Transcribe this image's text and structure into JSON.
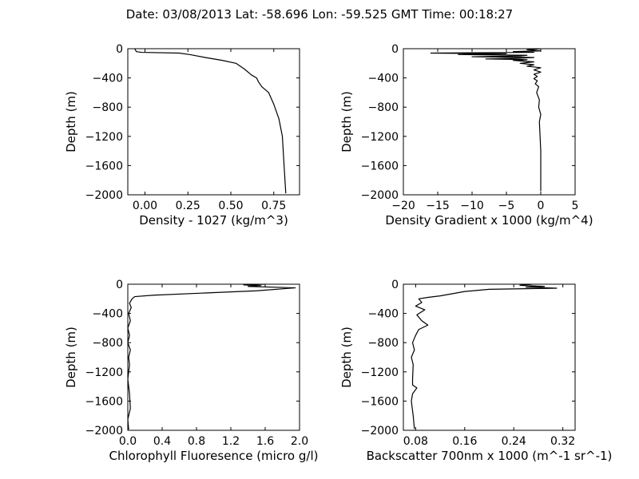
{
  "figure_title": "Date: 03/08/2013  Lat:  -58.696 Lon:  -59.525  GMT Time: 00:18:27",
  "chart_data": [
    {
      "type": "line",
      "title": "",
      "xlabel": "Density - 1027 (kg/m^3)",
      "ylabel": "Depth (m)",
      "xlim": [
        -0.1,
        0.9
      ],
      "ylim": [
        -2000,
        0
      ],
      "xticks": [
        0.0,
        0.25,
        0.5,
        0.75
      ],
      "xtick_labels": [
        "0.00",
        "0.25",
        "0.50",
        "0.75"
      ],
      "yticks": [
        0,
        -400,
        -800,
        -1200,
        -1600,
        -2000
      ],
      "ytick_labels": [
        "0",
        "−400",
        "−800",
        "−1200",
        "−1600",
        "−2000"
      ],
      "grid": false,
      "series": [
        {
          "x": [
            -0.06,
            -0.05,
            -0.02,
            0.2,
            0.26,
            0.35,
            0.45,
            0.53,
            0.58,
            0.62,
            0.65,
            0.66,
            0.68,
            0.72,
            0.75,
            0.78,
            0.8,
            0.81,
            0.82
          ],
          "y": [
            0,
            -40,
            -50,
            -60,
            -80,
            -120,
            -160,
            -200,
            -280,
            -360,
            -400,
            -450,
            -520,
            -600,
            -760,
            -960,
            -1200,
            -1600,
            -1980
          ]
        }
      ]
    },
    {
      "type": "line",
      "title": "",
      "xlabel": "Density Gradient x 1000 (kg/m^4)",
      "ylabel": "Depth (m)",
      "xlim": [
        -20,
        5
      ],
      "ylim": [
        -2000,
        0
      ],
      "xticks": [
        -20,
        -15,
        -10,
        -5,
        0,
        5
      ],
      "xtick_labels": [
        "−20",
        "−15",
        "−10",
        "−5",
        "0",
        "5"
      ],
      "yticks": [
        0,
        -400,
        -800,
        -1200,
        -1600,
        -2000
      ],
      "ytick_labels": [
        "0",
        "−400",
        "−800",
        "−1200",
        "−1600",
        "−2000"
      ],
      "grid": false,
      "series": [
        {
          "x": [
            0,
            -2,
            0,
            -4,
            -1,
            -16,
            -5,
            -12,
            -2,
            -3,
            -10,
            -1,
            -3,
            -8,
            -2,
            -4,
            -1,
            -3,
            -1,
            -2,
            0,
            -1,
            0,
            -1,
            -0.5,
            -1,
            -0.5,
            -0.8,
            -0.3,
            -0.6,
            -0.2,
            -0.3,
            0,
            -0.2,
            0,
            0
          ],
          "y": [
            0,
            -15,
            -30,
            -40,
            -50,
            -60,
            -70,
            -80,
            -90,
            -100,
            -110,
            -120,
            -130,
            -140,
            -150,
            -160,
            -180,
            -200,
            -220,
            -240,
            -260,
            -290,
            -320,
            -350,
            -380,
            -410,
            -440,
            -480,
            -520,
            -600,
            -700,
            -800,
            -900,
            -1000,
            -1400,
            -1950
          ]
        }
      ]
    },
    {
      "type": "line",
      "title": "",
      "xlabel": "Chlorophyll Fluoresence (micro g/l)",
      "ylabel": "Depth (m)",
      "xlim": [
        0.0,
        2.0
      ],
      "ylim": [
        -2000,
        0
      ],
      "xticks": [
        0.0,
        0.4,
        0.8,
        1.2,
        1.6,
        2.0
      ],
      "xtick_labels": [
        "0.0",
        "0.4",
        "0.8",
        "1.2",
        "1.6",
        "2.0"
      ],
      "yticks": [
        0,
        -400,
        -800,
        -1200,
        -1600,
        -2000
      ],
      "ytick_labels": [
        "0",
        "−400",
        "−800",
        "−1200",
        "−1600",
        "−2000"
      ],
      "grid": false,
      "series": [
        {
          "x": [
            1.6,
            1.35,
            1.55,
            1.4,
            1.95,
            1.5,
            0.9,
            0.3,
            0.08,
            0.05,
            0.02,
            0.04,
            0.01,
            0.03,
            0.0,
            0.02,
            0.0,
            0.03,
            0.01,
            0.02,
            0.0,
            0.02,
            0.03,
            0.0,
            0.01
          ],
          "y": [
            0,
            -10,
            -20,
            -30,
            -50,
            -90,
            -120,
            -150,
            -170,
            -200,
            -260,
            -320,
            -400,
            -500,
            -600,
            -700,
            -800,
            -900,
            -1000,
            -1100,
            -1300,
            -1500,
            -1700,
            -1850,
            -1990
          ]
        }
      ]
    },
    {
      "type": "line",
      "title": "",
      "xlabel": "Backscatter 700nm x 1000 (m^-1 sr^-1)",
      "ylabel": "Depth (m)",
      "xlim": [
        0.06,
        0.34
      ],
      "ylim": [
        -2000,
        0
      ],
      "xticks": [
        0.08,
        0.16,
        0.24,
        0.32
      ],
      "xtick_labels": [
        "0.08",
        "0.16",
        "0.24",
        "0.32"
      ],
      "yticks": [
        0,
        -400,
        -800,
        -1200,
        -1600,
        -2000
      ],
      "ytick_labels": [
        "0",
        "−400",
        "−800",
        "−1200",
        "−1600",
        "−2000"
      ],
      "grid": false,
      "series": [
        {
          "x": [
            0.27,
            0.25,
            0.29,
            0.26,
            0.31,
            0.2,
            0.16,
            0.14,
            0.12,
            0.1,
            0.085,
            0.09,
            0.08,
            0.095,
            0.082,
            0.09,
            0.1,
            0.085,
            0.08,
            0.075,
            0.078,
            0.073,
            0.076,
            0.075,
            0.075,
            0.082,
            0.075,
            0.073,
            0.076,
            0.078
          ],
          "y": [
            0,
            -15,
            -30,
            -40,
            -55,
            -70,
            -100,
            -130,
            -160,
            -180,
            -200,
            -250,
            -300,
            -350,
            -420,
            -500,
            -560,
            -620,
            -700,
            -800,
            -900,
            -1000,
            -1100,
            -1300,
            -1380,
            -1420,
            -1500,
            -1600,
            -1800,
            -1980
          ]
        }
      ]
    }
  ]
}
